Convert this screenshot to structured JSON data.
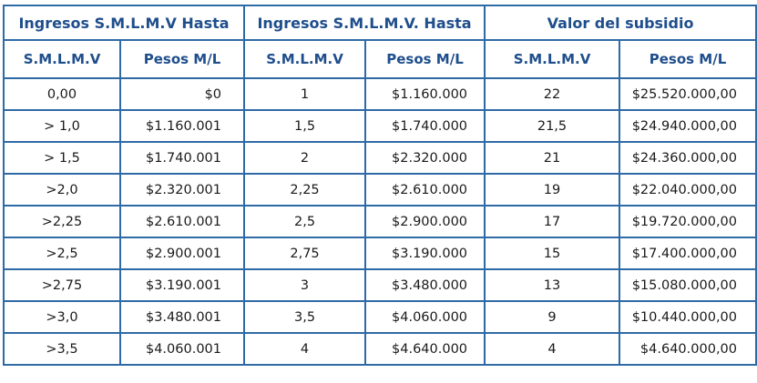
{
  "header": {
    "group_1": "Ingresos S.M.L.M.V Hasta",
    "group_2": "Ingresos S.M.L.M.V.  Hasta",
    "group_3": "Valor del subsidio",
    "col_smlmv_1": "S.M.L.M.V",
    "col_pesos_1": "Pesos M/L",
    "col_smlmv_2": "S.M.L.M.V",
    "col_pesos_2": "Pesos M/L",
    "col_smlmv_3": "S.M.L.M.V",
    "col_pesos_3": "Pesos M/L"
  },
  "rows": [
    {
      "desde_smlmv": "0,00",
      "desde_pesos": "$0",
      "hasta_smlmv": "1",
      "hasta_pesos": "$1.160.000",
      "subsidio_smlmv": "22",
      "subsidio_pesos": "$25.520.000,00"
    },
    {
      "desde_smlmv": "> 1,0",
      "desde_pesos": "$1.160.001",
      "hasta_smlmv": "1,5",
      "hasta_pesos": "$1.740.000",
      "subsidio_smlmv": "21,5",
      "subsidio_pesos": "$24.940.000,00"
    },
    {
      "desde_smlmv": "> 1,5",
      "desde_pesos": "$1.740.001",
      "hasta_smlmv": "2",
      "hasta_pesos": "$2.320.000",
      "subsidio_smlmv": "21",
      "subsidio_pesos": "$24.360.000,00"
    },
    {
      "desde_smlmv": ">2,0",
      "desde_pesos": "$2.320.001",
      "hasta_smlmv": "2,25",
      "hasta_pesos": "$2.610.000",
      "subsidio_smlmv": "19",
      "subsidio_pesos": "$22.040.000,00"
    },
    {
      "desde_smlmv": ">2,25",
      "desde_pesos": "$2.610.001",
      "hasta_smlmv": "2,5",
      "hasta_pesos": "$2.900.000",
      "subsidio_smlmv": "17",
      "subsidio_pesos": "$19.720.000,00"
    },
    {
      "desde_smlmv": ">2,5",
      "desde_pesos": "$2.900.001",
      "hasta_smlmv": "2,75",
      "hasta_pesos": "$3.190.000",
      "subsidio_smlmv": "15",
      "subsidio_pesos": "$17.400.000,00"
    },
    {
      "desde_smlmv": ">2,75",
      "desde_pesos": "$3.190.001",
      "hasta_smlmv": "3",
      "hasta_pesos": "$3.480.000",
      "subsidio_smlmv": "13",
      "subsidio_pesos": "$15.080.000,00"
    },
    {
      "desde_smlmv": ">3,0",
      "desde_pesos": "$3.480.001",
      "hasta_smlmv": "3,5",
      "hasta_pesos": "$4.060.000",
      "subsidio_smlmv": "9",
      "subsidio_pesos": "$10.440.000,00"
    },
    {
      "desde_smlmv": ">3,5",
      "desde_pesos": "$4.060.001",
      "hasta_smlmv": "4",
      "hasta_pesos": "$4.640.000",
      "subsidio_smlmv": "4",
      "subsidio_pesos": "$4.640.000,00"
    }
  ]
}
